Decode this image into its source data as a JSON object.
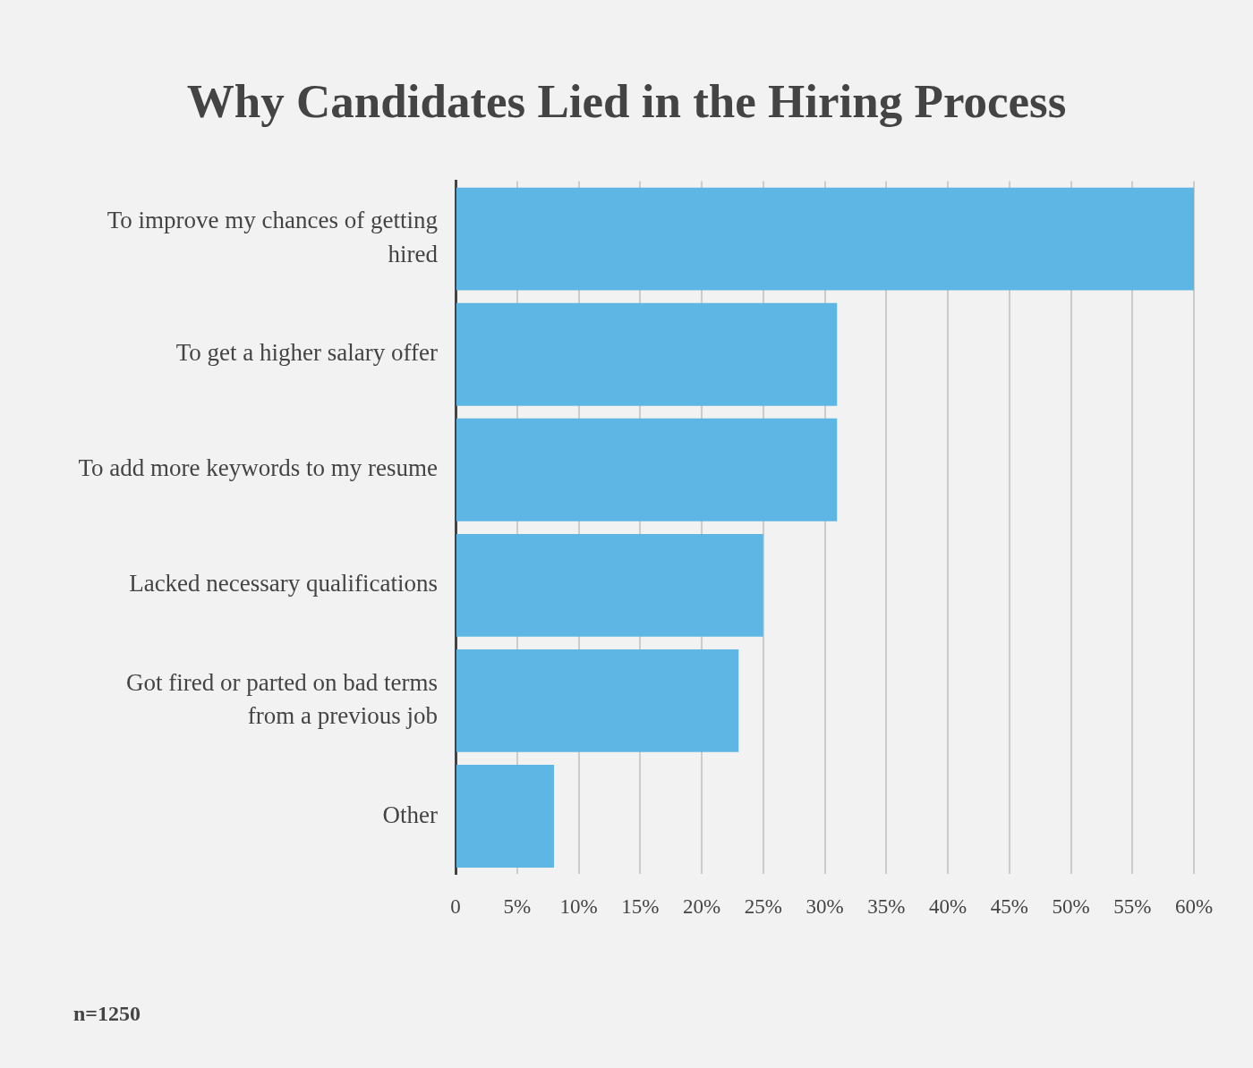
{
  "chart_data": {
    "type": "bar",
    "orientation": "horizontal",
    "title": "Why Candidates Lied in the Hiring Process",
    "categories": [
      "To improve my chances of getting hired",
      "To get a higher salary offer",
      "To add more keywords to my resume",
      "Lacked necessary qualifications",
      "Got fired or parted on bad terms from a previous job",
      "Other"
    ],
    "values": [
      60,
      31,
      31,
      25,
      23,
      8
    ],
    "color": "#5eb6e4",
    "xlim": [
      0,
      60
    ],
    "xticks": [
      0,
      {
        "value": 5,
        "label": "5%"
      },
      {
        "value": 10,
        "label": "10%"
      },
      {
        "value": 15,
        "label": "15%"
      },
      {
        "value": 20,
        "label": "20%"
      },
      {
        "value": 25,
        "label": "25%"
      },
      {
        "value": 30,
        "label": "30%"
      },
      {
        "value": 35,
        "label": "35%"
      },
      {
        "value": 40,
        "label": "40%"
      },
      {
        "value": 45,
        "label": "45%"
      },
      {
        "value": 50,
        "label": "50%"
      },
      {
        "value": 55,
        "label": "55%"
      },
      {
        "value": 60,
        "label": "60%"
      }
    ],
    "grid": "x",
    "annotations": [
      "n=1250"
    ]
  }
}
